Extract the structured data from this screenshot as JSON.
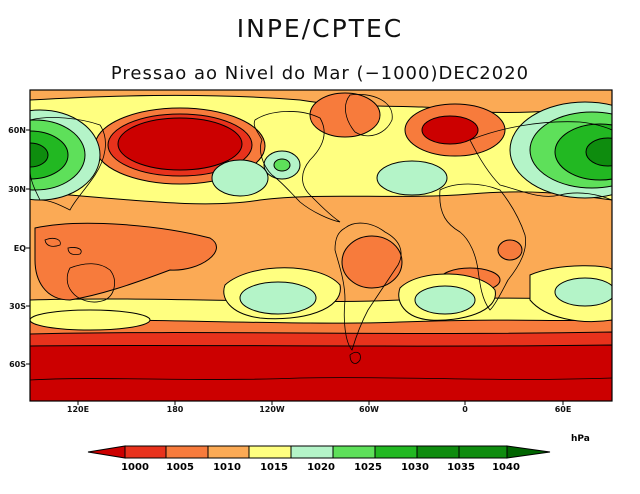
{
  "header": {
    "institution": "INPE/CPTEC",
    "title": "Pressao ao Nivel do Mar (−1000)DEC2020"
  },
  "axes": {
    "lat_labels": [
      "60N",
      "30N",
      "EQ",
      "30S",
      "60S"
    ],
    "lon_labels": [
      "120E",
      "180",
      "120W",
      "60W",
      "0",
      "60E"
    ]
  },
  "colorbar": {
    "unit": "hPa",
    "levels": [
      "1000",
      "1005",
      "1010",
      "1015",
      "1020",
      "1025",
      "1030",
      "1035",
      "1040"
    ],
    "colors": [
      "#cc0000",
      "#e8321c",
      "#f77b3c",
      "#fbaa55",
      "#ffff80",
      "#b4f4c8",
      "#5ee05a",
      "#22b822",
      "#0e8c0e",
      "#006400"
    ]
  }
}
